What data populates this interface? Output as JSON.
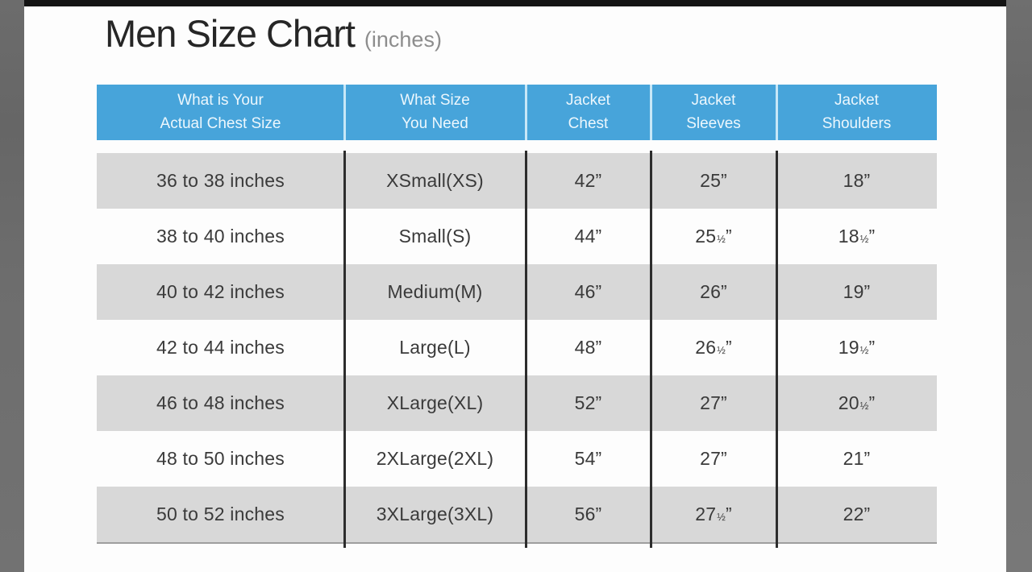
{
  "page": {
    "title": "Men Size Chart",
    "subtitle": "(inches)"
  },
  "colors": {
    "header_bg": "#47a4da",
    "header_text": "#ecf7fd",
    "row_alt_bg": "#d8d8d8",
    "row_bg": "#fdfdfd",
    "body_text": "#3a3a3a",
    "column_divider": "#2d2d2d",
    "header_divider": "#c7e7f7",
    "side_band": "#6f6f6f",
    "letterbox_bar": "#141414"
  },
  "chart_data": {
    "type": "table",
    "title": "Men Size Chart (inches)",
    "units": "inches",
    "layout": {
      "striped_rows": true,
      "first_row_shaded": true,
      "header_style": "blue band with light separators",
      "body_separators": "dark vertical column lines"
    },
    "columns": [
      "What is Your\nActual Chest Size",
      "What Size\nYou Need",
      "Jacket\nChest",
      "Jacket\nSleeves",
      "Jacket\nShoulders"
    ],
    "rows": [
      [
        "36 to 38 inches",
        "XSmall(XS)",
        "42”",
        "25”",
        "18”"
      ],
      [
        "38 to 40 inches",
        "Small(S)",
        "44”",
        "25½”",
        "18½”"
      ],
      [
        "40 to 42 inches",
        "Medium(M)",
        "46”",
        "26”",
        "19”"
      ],
      [
        "42 to 44 inches",
        "Large(L)",
        "48”",
        "26½”",
        "19½”"
      ],
      [
        "46 to 48 inches",
        "XLarge(XL)",
        "52”",
        "27”",
        "20½”"
      ],
      [
        "48 to 50 inches",
        "2XLarge(2XL)",
        "54”",
        "27”",
        "21”"
      ],
      [
        "50 to 52 inches",
        "3XLarge(3XL)",
        "56”",
        "27½”",
        "22”"
      ]
    ]
  }
}
